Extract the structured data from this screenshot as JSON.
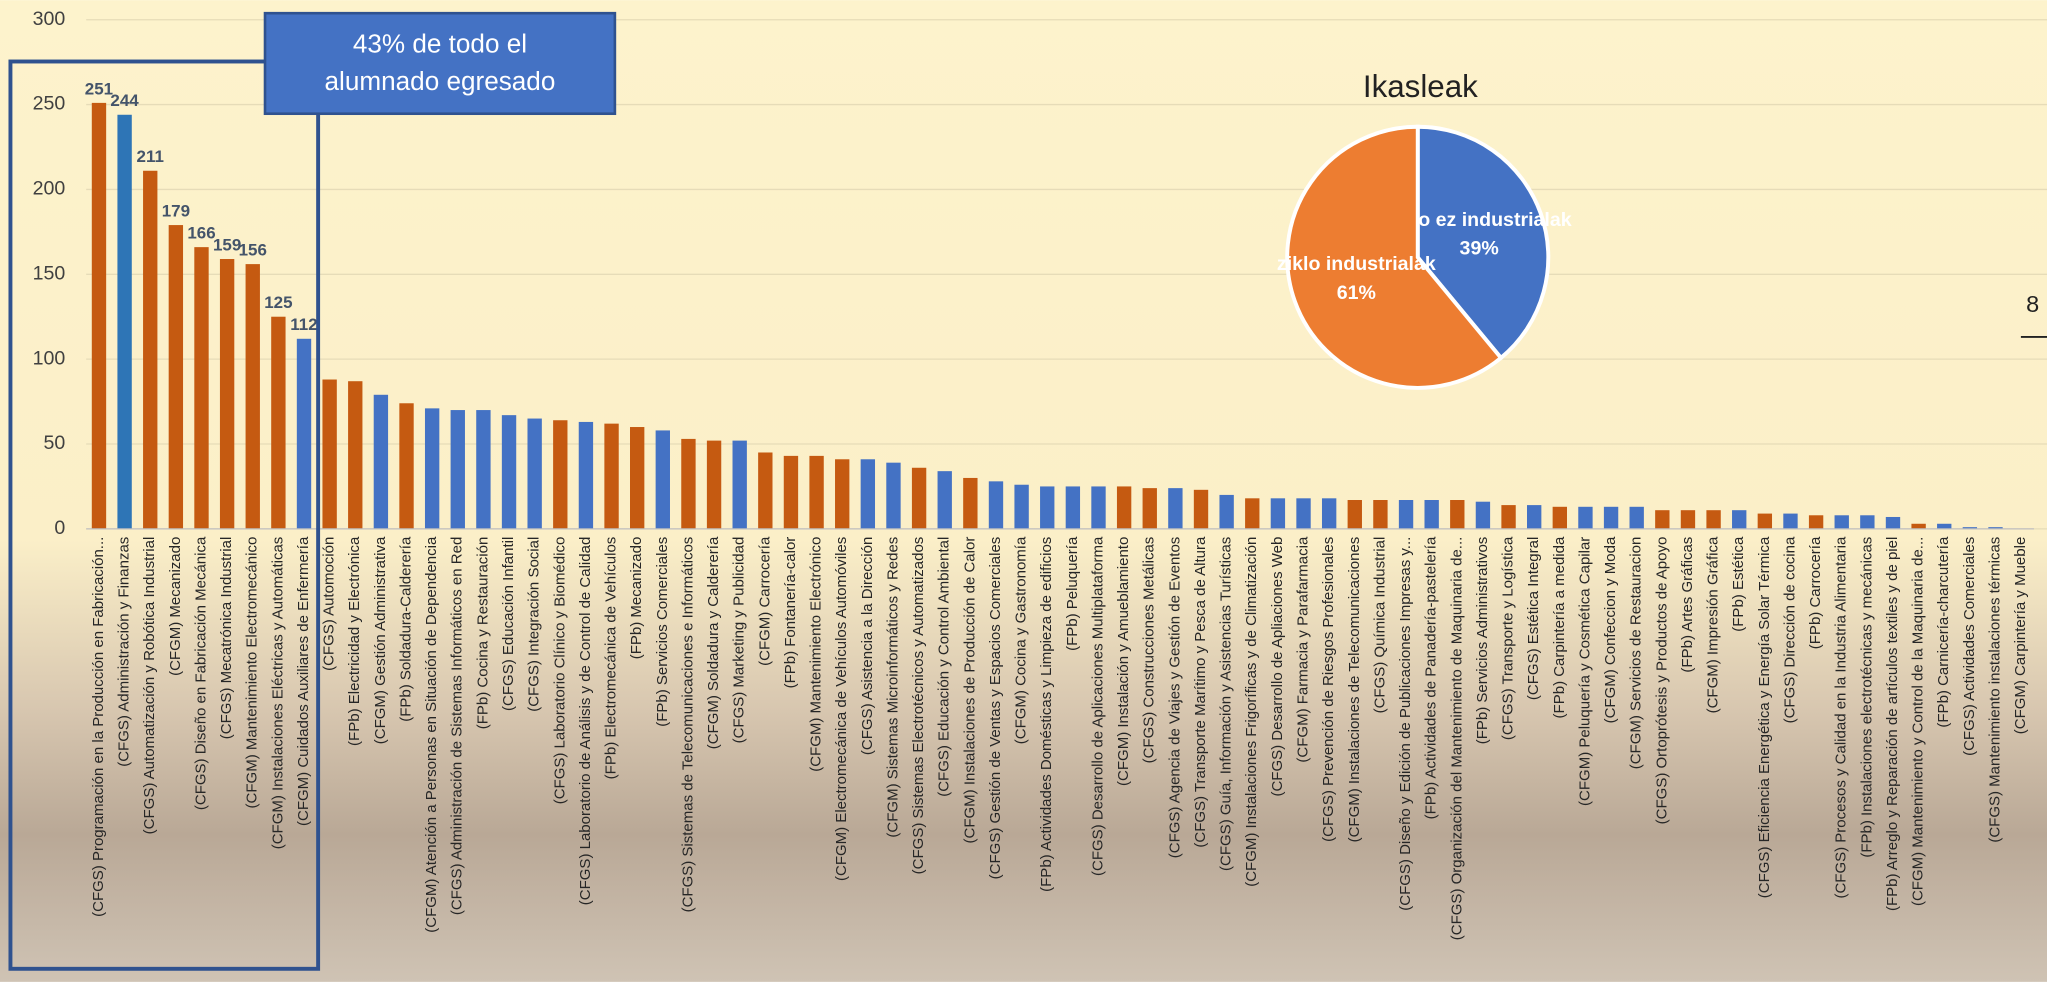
{
  "chart_data": [
    {
      "type": "bar",
      "categories": [
        "(CFGS) Programación en la Producción en Fabricación...",
        "(CFGS) Administración y Finanzas",
        "(CFGS) Automatización y Robótica Industrial",
        "(CFGM) Mecanizado",
        "(CFGS) Diseño en Fabricación Mecánica",
        "(CFGS) Mecatrónica Industrial",
        "(CFGM) Mantenimiento Electromecánico",
        "(CFGM) Instalaciones Eléctricas y Automáticas",
        "(CFGM) Cuidados Auxiliares de Enfermería",
        "(CFGS) Automoción",
        "(FPb) Electricidad y Electrónica",
        "(CFGM) Gestión Administrativa",
        "(FPb) Soldadura-Calderería",
        "(CFGM) Atención a Personas en Situación de Dependencia",
        "(CFGS) Administración de Sistemas Informáticos en Red",
        "(FPb) Cocina y Restauración",
        "(CFGS) Educación Infantil",
        "(CFGS) Integración Social",
        "(CFGS) Laboratorio Clínico y Biomédico",
        "(CFGS) Laboratorio de Análisis y de Control de Calidad",
        "(FPb) Electromecánica de Vehículos",
        "(FPb) Mecanizado",
        "(FPb) Servicios Comerciales",
        "(CFGS) Sistemas de Telecomunicaciones e Informáticos",
        "(CFGM) Soldadura y Calderería",
        "(CFGS) Marketing y Publicidad",
        "(CFGM) Carrocería",
        "(FPb) Fontanería-calor",
        "(CFGM) Mantenimiento Electrónico",
        "(CFGM) Electromecánica de Vehículos Automóviles",
        "(CFGS) Asistencia a la Dirección",
        "(CFGM) Sistemas Microinformáticos y Redes",
        "(CFGS) Sistemas Electrotécnicos y Automatizados",
        "(CFGS) Educación y Control Ambiental",
        "(CFGM) Instalaciones de Producción de Calor",
        "(CFGS) Gestión de Ventas y Espacios Comerciales",
        "(CFGM) Cocina y Gastronomía",
        "(FPb) Actividades Domésticas y Limpieza de edificios",
        "(FPb) Peluquería",
        "(CFGS) Desarrollo de Aplicaciones Multiplataforma",
        "(CFGM) Instalación y Amueblamiento",
        "(CFGS) Construcciones Metálicas",
        "(CFGS) Agencia de Viajes y Gestión de Eventos",
        "(CFGS) Transporte Marítimo y Pesca de Altura",
        "(CFGS) Guía, Información y Asistencias Turísticas",
        "(CFGM) Instalaciones Frigoríficas y de Climatización",
        "(CFGS) Desarrollo de Apliaciones Web",
        "(CFGM) Farmacia y Parafarmacia",
        "(CFGS) Prevención de Riesgos Profesionales",
        "(CFGM) Instalaciones de Telecomunicaciones",
        "(CFGS) Química Industrial",
        "(CFGS) Diseño y Edición de Publicaciones Impresas y...",
        "(FPb) Actividades de Panadería-pastelería",
        "(CFGS) Organización del Mantenimiento de Maquinaria de...",
        "(FPb) Servicios Administrativos",
        "(CFGS) Transporte y Logística",
        "(CFGS) Estética Integral",
        "(FPb) Carpintería a medida",
        "(CFGM) Peluquería y Cosmética Capilar",
        "(CFGM) Confeccion y Moda",
        "(CFGM) Servicios de Restauracion",
        "(CFGS) Ortoprótesis y Productos de Apoyo",
        "(FPb) Artes Gráficas",
        "(CFGM) Impresión Gráfica",
        "(FPb) Estética",
        "(CFGS) Eficiencia Energética y Energía Solar Térmica",
        "(CFGS) Dirección de cocina",
        "(FPb) Carrocería",
        "(CFGS) Procesos y Calidad en la Industria Alimentaria",
        "(FPb) Instalaciones electrotécnicas y mecánicas",
        "(FPb) Arreglo y Reparación de artículos textiles y de piel",
        "(CFGM) Mantenimiento y Control de la Maquinaria de...",
        "(FPb) Carnicería-charcutería",
        "(CFGS) Actividades Comerciales",
        "(CFGS) Mantenimiento instalaciones térmicas",
        "(CFGM) Carpintería y Mueble"
      ],
      "values": [
        251,
        244,
        211,
        179,
        166,
        159,
        156,
        125,
        112,
        88,
        87,
        79,
        74,
        71,
        70,
        70,
        67,
        65,
        64,
        63,
        62,
        60,
        58,
        53,
        52,
        52,
        45,
        43,
        43,
        41,
        41,
        39,
        36,
        34,
        30,
        28,
        26,
        25,
        25,
        25,
        25,
        24,
        24,
        23,
        20,
        18,
        18,
        18,
        18,
        17,
        17,
        17,
        17,
        17,
        16,
        14,
        14,
        13,
        13,
        13,
        13,
        11,
        11,
        11,
        11,
        9,
        9,
        8,
        8,
        8,
        7,
        3,
        3,
        1,
        1,
        0
      ],
      "colors": [
        "#c55a11",
        "#2e75b6",
        "#c55a11",
        "#c55a11",
        "#c55a11",
        "#c55a11",
        "#c55a11",
        "#c55a11",
        "#4472c4",
        "#c55a11",
        "#c55a11",
        "#4472c4",
        "#c55a11",
        "#4472c4",
        "#4472c4",
        "#4472c4",
        "#4472c4",
        "#4472c4",
        "#c55a11",
        "#4472c4",
        "#c55a11",
        "#c55a11",
        "#4472c4",
        "#c55a11",
        "#c55a11",
        "#4472c4",
        "#c55a11",
        "#c55a11",
        "#c55a11",
        "#c55a11",
        "#4472c4",
        "#4472c4",
        "#c55a11",
        "#4472c4",
        "#c55a11",
        "#4472c4",
        "#4472c4",
        "#4472c4",
        "#4472c4",
        "#4472c4",
        "#c55a11",
        "#c55a11",
        "#4472c4",
        "#c55a11",
        "#4472c4",
        "#c55a11",
        "#4472c4",
        "#4472c4",
        "#4472c4",
        "#c55a11",
        "#c55a11",
        "#4472c4",
        "#4472c4",
        "#c55a11",
        "#4472c4",
        "#c55a11",
        "#4472c4",
        "#c55a11",
        "#4472c4",
        "#4472c4",
        "#4472c4",
        "#c55a11",
        "#c55a11",
        "#c55a11",
        "#4472c4",
        "#c55a11",
        "#4472c4",
        "#c55a11",
        "#4472c4",
        "#4472c4",
        "#4472c4",
        "#c55a11",
        "#4472c4",
        "#4472c4",
        "#4472c4",
        "#4472c4"
      ],
      "ylim": [
        0,
        300
      ],
      "yticks": [
        0,
        50,
        100,
        150,
        200,
        250,
        300
      ],
      "grid": true,
      "highlight": {
        "from": 0,
        "to": 8,
        "label": "43% de todo el alumnado egresado"
      }
    },
    {
      "type": "pie",
      "title": "Ikasleak",
      "categories": [
        "ziklo ez industrialak",
        "ziklo industrialak"
      ],
      "values": [
        39,
        61
      ],
      "value_labels": [
        "39%",
        "61%"
      ],
      "colors": [
        "#4472c4",
        "#ed7d31"
      ]
    }
  ],
  "page_number": "8"
}
